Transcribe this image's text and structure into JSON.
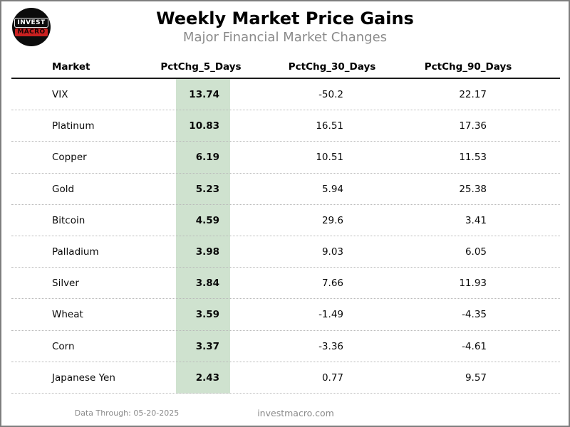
{
  "header": {
    "title": "Weekly Market Price Gains",
    "subtitle": "Major Financial Market Changes",
    "logo": {
      "line1": "INVEST",
      "line2": "MACRO"
    }
  },
  "table": {
    "columns": [
      "Market",
      "PctChg_5_Days",
      "PctChg_30_Days",
      "PctChg_90_Days"
    ],
    "rows": [
      {
        "market": "VIX",
        "d5": "13.74",
        "d30": "-50.2",
        "d90": "22.17"
      },
      {
        "market": "Platinum",
        "d5": "10.83",
        "d30": "16.51",
        "d90": "17.36"
      },
      {
        "market": "Copper",
        "d5": "6.19",
        "d30": "10.51",
        "d90": "11.53"
      },
      {
        "market": "Gold",
        "d5": "5.23",
        "d30": "5.94",
        "d90": "25.38"
      },
      {
        "market": "Bitcoin",
        "d5": "4.59",
        "d30": "29.6",
        "d90": "3.41"
      },
      {
        "market": "Palladium",
        "d5": "3.98",
        "d30": "9.03",
        "d90": "6.05"
      },
      {
        "market": "Silver",
        "d5": "3.84",
        "d30": "7.66",
        "d90": "11.93"
      },
      {
        "market": "Wheat",
        "d5": "3.59",
        "d30": "-1.49",
        "d90": "-4.35"
      },
      {
        "market": "Corn",
        "d5": "3.37",
        "d30": "-3.36",
        "d90": "-4.61"
      },
      {
        "market": "Japanese Yen",
        "d5": "2.43",
        "d30": "0.77",
        "d90": "9.57"
      }
    ]
  },
  "footer": {
    "data_through": "Data Through: 05-20-2025",
    "site": "investmacro.com"
  },
  "colors": {
    "highlight_green": "#cfe2cf",
    "subtitle_gray": "#8a8a8a",
    "logo_red": "#c92020"
  },
  "chart_data": {
    "type": "table",
    "title": "Weekly Market Price Gains",
    "subtitle": "Major Financial Market Changes",
    "columns": [
      "Market",
      "PctChg_5_Days",
      "PctChg_30_Days",
      "PctChg_90_Days"
    ],
    "highlighted_column": "PctChg_5_Days",
    "rows": [
      [
        "VIX",
        13.74,
        -50.2,
        22.17
      ],
      [
        "Platinum",
        10.83,
        16.51,
        17.36
      ],
      [
        "Copper",
        6.19,
        10.51,
        11.53
      ],
      [
        "Gold",
        5.23,
        5.94,
        25.38
      ],
      [
        "Bitcoin",
        4.59,
        29.6,
        3.41
      ],
      [
        "Palladium",
        3.98,
        9.03,
        6.05
      ],
      [
        "Silver",
        3.84,
        7.66,
        11.93
      ],
      [
        "Wheat",
        3.59,
        -1.49,
        -4.35
      ],
      [
        "Corn",
        3.37,
        -3.36,
        -4.61
      ],
      [
        "Japanese Yen",
        2.43,
        0.77,
        9.57
      ]
    ],
    "footnote": "Data Through: 05-20-2025",
    "source": "investmacro.com"
  }
}
